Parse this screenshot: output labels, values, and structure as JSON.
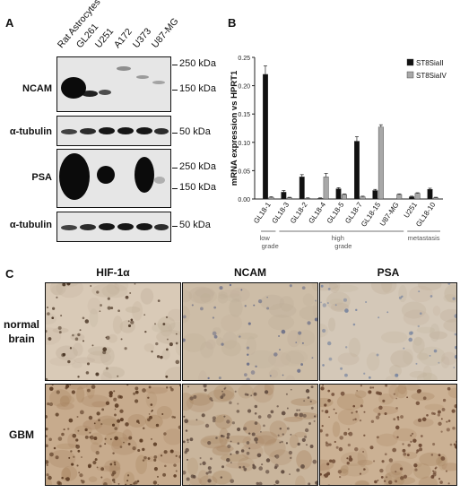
{
  "panels": {
    "a": "A",
    "b": "B",
    "c": "C"
  },
  "blot": {
    "lanes": [
      "Rat Astrocytes",
      "GL261",
      "U251",
      "A172",
      "U373",
      "U87-MG"
    ],
    "rows": [
      {
        "label": "NCAM",
        "markers": [
          "250 kDa",
          "150 kDa"
        ]
      },
      {
        "label": "α-tubulin",
        "markers": [
          "50 kDa"
        ]
      },
      {
        "label": "PSA",
        "markers": [
          "250 kDa",
          "150 kDa"
        ]
      },
      {
        "label": "α-tubulin",
        "markers": [
          "50 kDa"
        ]
      }
    ]
  },
  "chart_data": {
    "type": "bar",
    "ylabel": "mRNA expression vs HPRT1",
    "ylim": [
      0,
      0.25
    ],
    "yticks": [
      "0.00",
      "0.05",
      "0.10",
      "0.15",
      "0.20",
      "0.25"
    ],
    "categories": [
      "GL18-1",
      "GL18-3",
      "GL18-2",
      "GL18-4",
      "GL18-5",
      "GL18-7",
      "GL18-15",
      "U87-MG",
      "U251",
      "GL18-10"
    ],
    "series": [
      {
        "name": "ST8SiaII",
        "color": "#111111",
        "values": [
          0.22,
          0.012,
          0.039,
          0.001,
          0.018,
          0.102,
          0.015,
          0.0,
          0.004,
          0.017
        ],
        "errors": [
          0.015,
          0.003,
          0.004,
          0.001,
          0.002,
          0.008,
          0.002,
          0.0,
          0.001,
          0.002
        ]
      },
      {
        "name": "ST8SiaIV",
        "color": "#a8a8a8",
        "values": [
          0.003,
          0.002,
          0.001,
          0.039,
          0.008,
          0.004,
          0.127,
          0.008,
          0.01,
          0.002
        ],
        "errors": [
          0.001,
          0.001,
          0.001,
          0.006,
          0.001,
          0.001,
          0.004,
          0.001,
          0.001,
          0.001
        ]
      }
    ],
    "groups": [
      {
        "label": "low grade",
        "start": 0,
        "end": 0
      },
      {
        "label": "high grade",
        "start": 1,
        "end": 7
      },
      {
        "label": "metastasis",
        "start": 8,
        "end": 9
      }
    ],
    "legend_position": "top-right"
  },
  "ihc": {
    "columns": [
      "HIF-1α",
      "NCAM",
      "PSA"
    ],
    "rows": [
      "normal brain",
      "GBM"
    ]
  }
}
